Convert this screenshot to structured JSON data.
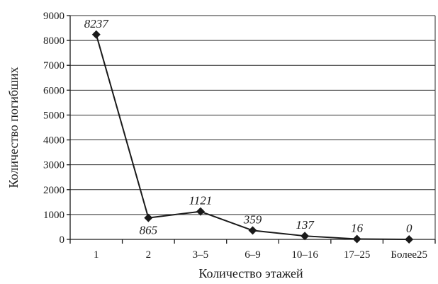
{
  "chart_data": {
    "type": "line",
    "categories": [
      "1",
      "2",
      "3–5",
      "6–9",
      "10–16",
      "17–25",
      "Более25"
    ],
    "values": [
      8237,
      865,
      1121,
      359,
      137,
      16,
      0
    ],
    "data_labels": [
      "8237",
      "865",
      "1121",
      "359",
      "137",
      "16",
      "0"
    ],
    "xlabel": "Количество этажей",
    "ylabel": "Количество погибших",
    "ylim": [
      0,
      9000
    ],
    "yticks": [
      0,
      1000,
      2000,
      3000,
      4000,
      5000,
      6000,
      7000,
      8000,
      9000
    ],
    "ytick_labels": [
      "0",
      "1000",
      "2000",
      "3000",
      "4000",
      "5000",
      "6000",
      "7000",
      "8000",
      "9000"
    ],
    "grid": true,
    "marker": "diamond",
    "line_color": "#1a1a1a"
  }
}
